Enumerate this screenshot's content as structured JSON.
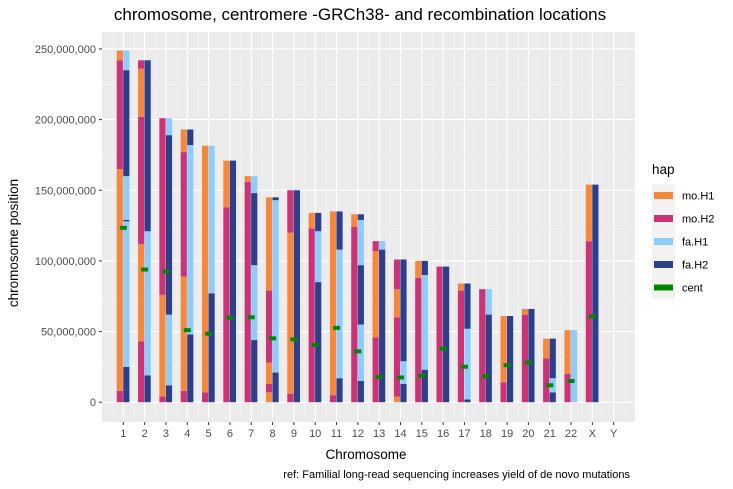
{
  "chart_data": {
    "type": "bar",
    "title": "chromosome, centromere -GRCh38- and recombination locations",
    "xlabel": "Chromosome",
    "ylabel": "chromosome position",
    "caption": "ref: Familial long-read sequencing increases yield of de novo mutations",
    "ylim": [
      -14000000,
      262000000
    ],
    "yticks": [
      0,
      50000000,
      100000000,
      150000000,
      200000000,
      250000000
    ],
    "ytick_labels": [
      "0",
      "50,000,000",
      "100,000,000",
      "150,000,000",
      "200,000,000",
      "250,000,000"
    ],
    "categories": [
      "1",
      "2",
      "3",
      "4",
      "5",
      "6",
      "7",
      "8",
      "9",
      "10",
      "11",
      "12",
      "13",
      "14",
      "15",
      "16",
      "17",
      "18",
      "19",
      "20",
      "21",
      "22",
      "X",
      "Y"
    ],
    "legend": {
      "title": "hap",
      "position": "right",
      "items": [
        {
          "key": "mo.H1",
          "label": "mo.H1",
          "color": "#F8873E"
        },
        {
          "key": "mo.H2",
          "label": "mo.H2",
          "color": "#CC3377"
        },
        {
          "key": "fa.H1",
          "label": "fa.H1",
          "color": "#8DCCFC"
        },
        {
          "key": "fa.H2",
          "label": "fa.H2",
          "color": "#2B3F8C"
        },
        {
          "key": "cent",
          "label": "cent",
          "color": "#008800"
        }
      ]
    },
    "colors": {
      "panel": "#EBEBEB",
      "grid_major": "#FFFFFF",
      "grid_minor": "#F5F5F5",
      "cent": "#008800"
    },
    "bars": [
      {
        "chr": "1",
        "hap": "mo.H1",
        "segments": [
          [
            0,
            8000000,
            "mo.H2"
          ],
          [
            8000000,
            165000000,
            "mo.H1"
          ],
          [
            165000000,
            242000000,
            "mo.H2"
          ],
          [
            242000000,
            248900000,
            "mo.H1"
          ]
        ]
      },
      {
        "chr": "1",
        "hap": "fa.H1",
        "segments": [
          [
            0,
            25000000,
            "fa.H2"
          ],
          [
            25000000,
            128000000,
            "fa.H1"
          ],
          [
            128000000,
            129000000,
            "fa.H2"
          ],
          [
            129000000,
            160000000,
            "fa.H1"
          ],
          [
            160000000,
            235000000,
            "fa.H2"
          ],
          [
            235000000,
            248900000,
            "fa.H1"
          ]
        ]
      },
      {
        "chr": "2",
        "hap": "mo.H1",
        "segments": [
          [
            0,
            43000000,
            "mo.H2"
          ],
          [
            43000000,
            112000000,
            "mo.H1"
          ],
          [
            112000000,
            202000000,
            "mo.H2"
          ],
          [
            202000000,
            236000000,
            "mo.H1"
          ],
          [
            236000000,
            242000000,
            "mo.H2"
          ]
        ]
      },
      {
        "chr": "2",
        "hap": "fa.H1",
        "segments": [
          [
            0,
            19000000,
            "fa.H2"
          ],
          [
            19000000,
            121000000,
            "fa.H1"
          ],
          [
            121000000,
            242000000,
            "fa.H2"
          ]
        ]
      },
      {
        "chr": "3",
        "hap": "mo.H1",
        "segments": [
          [
            0,
            4000000,
            "mo.H2"
          ],
          [
            4000000,
            76000000,
            "mo.H1"
          ],
          [
            76000000,
            201000000,
            "mo.H2"
          ]
        ]
      },
      {
        "chr": "3",
        "hap": "fa.H1",
        "segments": [
          [
            0,
            12000000,
            "fa.H2"
          ],
          [
            12000000,
            62000000,
            "fa.H1"
          ],
          [
            62000000,
            189000000,
            "fa.H2"
          ],
          [
            189000000,
            201000000,
            "fa.H1"
          ]
        ]
      },
      {
        "chr": "4",
        "hap": "mo.H1",
        "segments": [
          [
            0,
            8000000,
            "mo.H2"
          ],
          [
            8000000,
            89000000,
            "mo.H1"
          ],
          [
            89000000,
            177000000,
            "mo.H2"
          ],
          [
            177000000,
            193000000,
            "mo.H1"
          ]
        ]
      },
      {
        "chr": "4",
        "hap": "fa.H1",
        "segments": [
          [
            0,
            48000000,
            "fa.H2"
          ],
          [
            48000000,
            182000000,
            "fa.H1"
          ],
          [
            182000000,
            193000000,
            "fa.H2"
          ]
        ]
      },
      {
        "chr": "5",
        "hap": "mo.H1",
        "segments": [
          [
            0,
            7000000,
            "mo.H2"
          ],
          [
            7000000,
            181500000,
            "mo.H1"
          ]
        ]
      },
      {
        "chr": "5",
        "hap": "fa.H1",
        "segments": [
          [
            0,
            77000000,
            "fa.H2"
          ],
          [
            77000000,
            181500000,
            "fa.H1"
          ]
        ]
      },
      {
        "chr": "6",
        "hap": "mo.H1",
        "segments": [
          [
            0,
            138000000,
            "mo.H2"
          ],
          [
            138000000,
            171000000,
            "mo.H1"
          ]
        ]
      },
      {
        "chr": "6",
        "hap": "fa.H1",
        "segments": [
          [
            0,
            171000000,
            "fa.H2"
          ]
        ]
      },
      {
        "chr": "7",
        "hap": "mo.H1",
        "segments": [
          [
            0,
            156000000,
            "mo.H2"
          ],
          [
            156000000,
            160000000,
            "mo.H1"
          ]
        ]
      },
      {
        "chr": "7",
        "hap": "fa.H1",
        "segments": [
          [
            0,
            44000000,
            "fa.H2"
          ],
          [
            44000000,
            97000000,
            "fa.H1"
          ],
          [
            97000000,
            148000000,
            "fa.H2"
          ],
          [
            148000000,
            160000000,
            "fa.H1"
          ]
        ]
      },
      {
        "chr": "8",
        "hap": "mo.H1",
        "segments": [
          [
            0,
            7000000,
            "mo.H1"
          ],
          [
            7000000,
            13000000,
            "mo.H2"
          ],
          [
            13000000,
            28000000,
            "mo.H1"
          ],
          [
            28000000,
            79000000,
            "mo.H2"
          ],
          [
            79000000,
            145000000,
            "mo.H1"
          ]
        ]
      },
      {
        "chr": "8",
        "hap": "fa.H1",
        "segments": [
          [
            0,
            21000000,
            "fa.H2"
          ],
          [
            21000000,
            143000000,
            "fa.H1"
          ],
          [
            143000000,
            145000000,
            "fa.H2"
          ]
        ]
      },
      {
        "chr": "9",
        "hap": "mo.H1",
        "segments": [
          [
            0,
            6000000,
            "mo.H2"
          ],
          [
            6000000,
            120000000,
            "mo.H1"
          ],
          [
            120000000,
            150000000,
            "mo.H2"
          ]
        ]
      },
      {
        "chr": "9",
        "hap": "fa.H1",
        "segments": [
          [
            0,
            150000000,
            "fa.H2"
          ]
        ]
      },
      {
        "chr": "10",
        "hap": "mo.H1",
        "segments": [
          [
            0,
            123000000,
            "mo.H2"
          ],
          [
            123000000,
            134000000,
            "mo.H1"
          ]
        ]
      },
      {
        "chr": "10",
        "hap": "fa.H1",
        "segments": [
          [
            0,
            85000000,
            "fa.H2"
          ],
          [
            85000000,
            121000000,
            "fa.H1"
          ],
          [
            121000000,
            134000000,
            "fa.H2"
          ]
        ]
      },
      {
        "chr": "11",
        "hap": "mo.H1",
        "segments": [
          [
            0,
            5000000,
            "mo.H2"
          ],
          [
            5000000,
            135000000,
            "mo.H1"
          ]
        ]
      },
      {
        "chr": "11",
        "hap": "fa.H1",
        "segments": [
          [
            0,
            17000000,
            "fa.H2"
          ],
          [
            17000000,
            108000000,
            "fa.H1"
          ],
          [
            108000000,
            135000000,
            "fa.H2"
          ]
        ]
      },
      {
        "chr": "12",
        "hap": "mo.H1",
        "segments": [
          [
            0,
            124000000,
            "mo.H2"
          ],
          [
            124000000,
            133000000,
            "mo.H1"
          ]
        ]
      },
      {
        "chr": "12",
        "hap": "fa.H1",
        "segments": [
          [
            0,
            15000000,
            "fa.H2"
          ],
          [
            15000000,
            55000000,
            "fa.H1"
          ],
          [
            55000000,
            97000000,
            "fa.H2"
          ],
          [
            97000000,
            129000000,
            "fa.H1"
          ],
          [
            129000000,
            133000000,
            "fa.H2"
          ]
        ]
      },
      {
        "chr": "13",
        "hap": "mo.H1",
        "segments": [
          [
            0,
            46000000,
            "mo.H2"
          ],
          [
            46000000,
            107000000,
            "mo.H1"
          ],
          [
            107000000,
            114000000,
            "mo.H2"
          ]
        ]
      },
      {
        "chr": "13",
        "hap": "fa.H1",
        "segments": [
          [
            0,
            108000000,
            "fa.H2"
          ],
          [
            108000000,
            114000000,
            "fa.H1"
          ]
        ]
      },
      {
        "chr": "14",
        "hap": "mo.H1",
        "segments": [
          [
            0,
            4000000,
            "mo.H1"
          ],
          [
            4000000,
            60000000,
            "mo.H2"
          ],
          [
            60000000,
            80000000,
            "mo.H1"
          ],
          [
            80000000,
            101000000,
            "mo.H2"
          ]
        ]
      },
      {
        "chr": "14",
        "hap": "fa.H1",
        "segments": [
          [
            0,
            13000000,
            "fa.H2"
          ],
          [
            13000000,
            29000000,
            "fa.H1"
          ],
          [
            29000000,
            101000000,
            "fa.H2"
          ]
        ]
      },
      {
        "chr": "15",
        "hap": "mo.H1",
        "segments": [
          [
            0,
            88000000,
            "mo.H2"
          ],
          [
            88000000,
            100000000,
            "mo.H1"
          ]
        ]
      },
      {
        "chr": "15",
        "hap": "fa.H1",
        "segments": [
          [
            0,
            23000000,
            "fa.H2"
          ],
          [
            23000000,
            90000000,
            "fa.H1"
          ],
          [
            90000000,
            100000000,
            "fa.H2"
          ]
        ]
      },
      {
        "chr": "16",
        "hap": "mo.H1",
        "segments": [
          [
            0,
            96000000,
            "mo.H2"
          ]
        ]
      },
      {
        "chr": "16",
        "hap": "fa.H1",
        "segments": [
          [
            0,
            96000000,
            "fa.H2"
          ]
        ]
      },
      {
        "chr": "17",
        "hap": "mo.H1",
        "segments": [
          [
            0,
            79000000,
            "mo.H2"
          ],
          [
            79000000,
            84000000,
            "mo.H1"
          ]
        ]
      },
      {
        "chr": "17",
        "hap": "fa.H1",
        "segments": [
          [
            0,
            2000000,
            "fa.H2"
          ],
          [
            2000000,
            52000000,
            "fa.H1"
          ],
          [
            52000000,
            84000000,
            "fa.H2"
          ]
        ]
      },
      {
        "chr": "18",
        "hap": "mo.H1",
        "segments": [
          [
            0,
            80000000,
            "mo.H2"
          ]
        ]
      },
      {
        "chr": "18",
        "hap": "fa.H1",
        "segments": [
          [
            0,
            62000000,
            "fa.H2"
          ],
          [
            62000000,
            80000000,
            "fa.H1"
          ]
        ]
      },
      {
        "chr": "19",
        "hap": "mo.H1",
        "segments": [
          [
            0,
            14000000,
            "mo.H2"
          ],
          [
            14000000,
            61000000,
            "mo.H1"
          ]
        ]
      },
      {
        "chr": "19",
        "hap": "fa.H1",
        "segments": [
          [
            0,
            61000000,
            "fa.H2"
          ]
        ]
      },
      {
        "chr": "20",
        "hap": "mo.H1",
        "segments": [
          [
            0,
            62000000,
            "mo.H2"
          ],
          [
            62000000,
            66000000,
            "mo.H1"
          ]
        ]
      },
      {
        "chr": "20",
        "hap": "fa.H1",
        "segments": [
          [
            0,
            66000000,
            "fa.H2"
          ]
        ]
      },
      {
        "chr": "21",
        "hap": "mo.H1",
        "segments": [
          [
            0,
            31000000,
            "mo.H2"
          ],
          [
            31000000,
            45000000,
            "mo.H1"
          ]
        ]
      },
      {
        "chr": "21",
        "hap": "fa.H1",
        "segments": [
          [
            0,
            7000000,
            "fa.H2"
          ],
          [
            7000000,
            17000000,
            "fa.H1"
          ],
          [
            17000000,
            45000000,
            "fa.H2"
          ]
        ]
      },
      {
        "chr": "22",
        "hap": "mo.H1",
        "segments": [
          [
            0,
            20000000,
            "mo.H2"
          ],
          [
            20000000,
            33000000,
            "mo.H1"
          ],
          [
            33000000,
            51000000,
            "mo.H1"
          ]
        ]
      },
      {
        "chr": "22",
        "hap": "fa.H1",
        "segments": [
          [
            0,
            51000000,
            "fa.H1"
          ]
        ]
      },
      {
        "chr": "X",
        "hap": "mo.H1",
        "segments": [
          [
            0,
            114000000,
            "mo.H2"
          ],
          [
            114000000,
            154000000,
            "mo.H1"
          ]
        ]
      },
      {
        "chr": "X",
        "hap": "fa.H1",
        "segments": [
          [
            0,
            154000000,
            "fa.H2"
          ]
        ]
      }
    ],
    "centromeres": [
      {
        "chr": "1",
        "y": 123400000
      },
      {
        "chr": "2",
        "y": 93900000
      },
      {
        "chr": "3",
        "y": 92500000
      },
      {
        "chr": "4",
        "y": 51000000
      },
      {
        "chr": "5",
        "y": 48500000
      },
      {
        "chr": "6",
        "y": 59800000
      },
      {
        "chr": "7",
        "y": 60100000
      },
      {
        "chr": "8",
        "y": 45200000
      },
      {
        "chr": "9",
        "y": 44500000
      },
      {
        "chr": "10",
        "y": 40500000
      },
      {
        "chr": "11",
        "y": 52600000
      },
      {
        "chr": "12",
        "y": 36000000
      },
      {
        "chr": "13",
        "y": 17800000
      },
      {
        "chr": "14",
        "y": 17500000
      },
      {
        "chr": "15",
        "y": 18800000
      },
      {
        "chr": "16",
        "y": 37900000
      },
      {
        "chr": "17",
        "y": 25100000
      },
      {
        "chr": "18",
        "y": 18300000
      },
      {
        "chr": "19",
        "y": 26200000
      },
      {
        "chr": "20",
        "y": 28100000
      },
      {
        "chr": "21",
        "y": 12000000
      },
      {
        "chr": "22",
        "y": 15000000
      },
      {
        "chr": "X",
        "y": 60600000
      }
    ]
  }
}
